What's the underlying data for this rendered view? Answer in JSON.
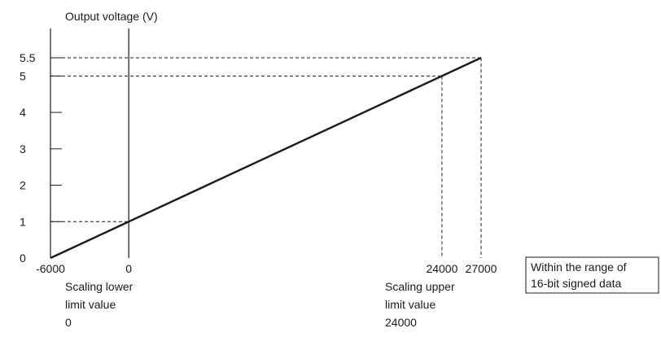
{
  "chart_data": {
    "type": "line",
    "ylabel": "Output voltage (V)",
    "xlabel": "",
    "x_range": [
      -6000,
      27000
    ],
    "y_range": [
      0,
      5.5
    ],
    "x_ticks": [
      {
        "value": -6000,
        "label": "-6000"
      },
      {
        "value": 0,
        "label": "0"
      },
      {
        "value": 24000,
        "label": "24000"
      },
      {
        "value": 27000,
        "label": "27000"
      }
    ],
    "y_ticks": [
      {
        "value": 0,
        "label": "0"
      },
      {
        "value": 1,
        "label": "1"
      },
      {
        "value": 2,
        "label": "2"
      },
      {
        "value": 3,
        "label": "3"
      },
      {
        "value": 4,
        "label": "4"
      },
      {
        "value": 5,
        "label": "5"
      },
      {
        "value": 5.5,
        "label": "5.5"
      }
    ],
    "series": [
      {
        "x": [
          -6000,
          27000
        ],
        "y": [
          0,
          5.5
        ]
      }
    ],
    "guides": [
      {
        "x": 0,
        "y": 1
      },
      {
        "x": 24000,
        "y": 5
      },
      {
        "x": 27000,
        "y": 5.5
      }
    ],
    "annotations": {
      "scaling_lower": [
        "Scaling lower",
        "limit value",
        "0"
      ],
      "scaling_upper": [
        "Scaling upper",
        "limit value",
        "24000"
      ],
      "range_note": [
        "Within the range of",
        "16-bit signed data"
      ]
    }
  }
}
